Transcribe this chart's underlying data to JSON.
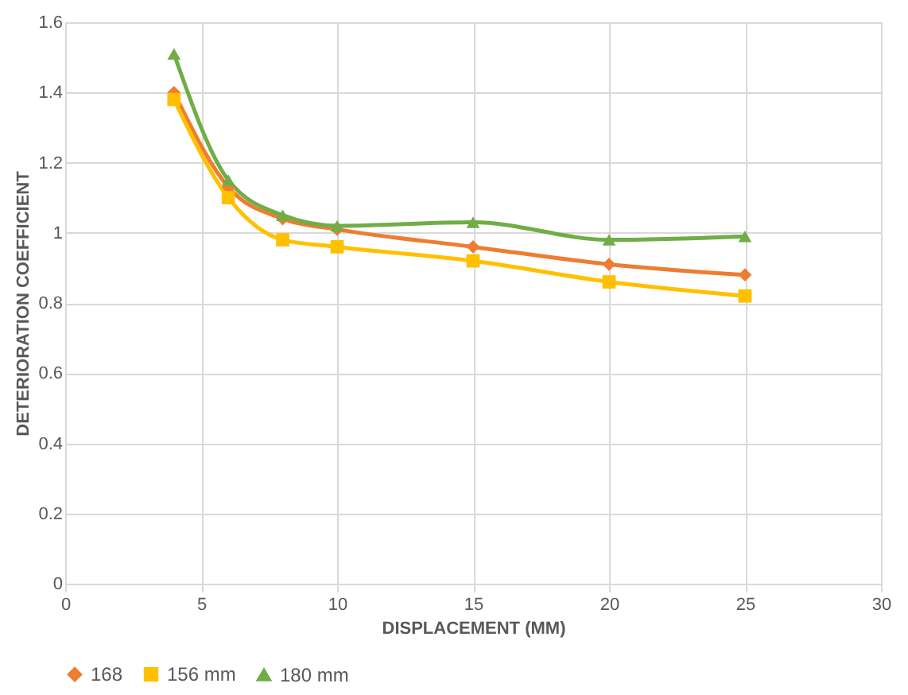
{
  "chart_data": {
    "type": "line",
    "xlabel": "DISPLACEMENT (MM)",
    "ylabel": "DETERIORATION COEFFICIENT",
    "x": [
      4,
      6,
      8,
      10,
      15,
      20,
      25
    ],
    "series": [
      {
        "name": "168",
        "color": "#ed7d31",
        "marker": "diamond",
        "values": [
          1.4,
          1.13,
          1.04,
          1.01,
          0.96,
          0.91,
          0.88
        ]
      },
      {
        "name": "156 mm",
        "color": "#ffc000",
        "marker": "square",
        "values": [
          1.38,
          1.1,
          0.98,
          0.96,
          0.92,
          0.86,
          0.82
        ]
      },
      {
        "name": "180 mm",
        "color": "#70ad47",
        "marker": "triangle",
        "values": [
          1.51,
          1.15,
          1.05,
          1.02,
          1.03,
          0.98,
          0.99
        ]
      }
    ],
    "xlim": [
      0,
      30
    ],
    "xticks": [
      0,
      5,
      10,
      15,
      20,
      25,
      30
    ],
    "ylim": [
      0,
      1.6
    ],
    "yticks": [
      0,
      0.2,
      0.4,
      0.6,
      0.8,
      1,
      1.2,
      1.4,
      1.6
    ],
    "grid": true,
    "legend": "bottom",
    "line_style": "solid"
  }
}
